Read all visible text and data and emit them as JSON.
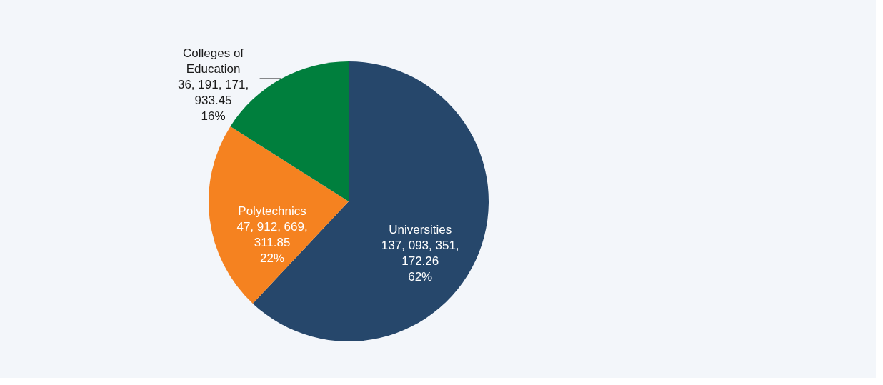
{
  "chart_data": {
    "type": "pie",
    "categories": [
      "Universities",
      "Polytechnics",
      "Colleges of Education"
    ],
    "values": [
      62,
      22,
      16
    ],
    "colors": [
      "#26476b",
      "#f58220",
      "#007f3d"
    ],
    "value_labels": [
      "62%",
      "22%",
      "16%"
    ],
    "annotations": [
      "137, 093, 351, 172.26",
      "47, 912, 669, 311.85",
      "36, 191, 171, 933.45"
    ],
    "legend": false
  }
}
